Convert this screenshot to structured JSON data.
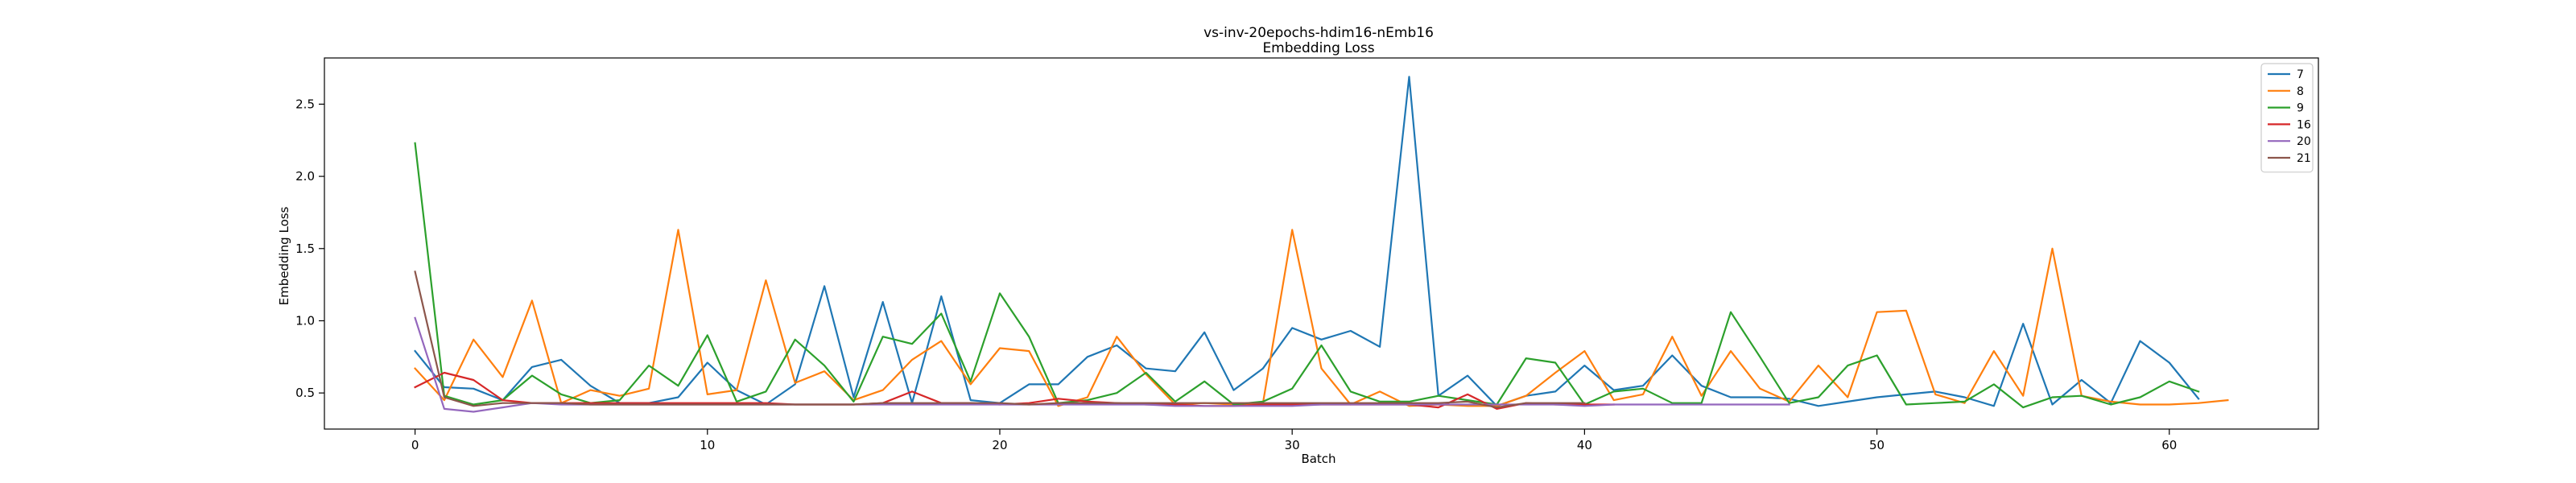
{
  "chart_data": {
    "type": "line",
    "title": "vs-inv-20epochs-hdim16-nEmb16",
    "subtitle": "Embedding Loss",
    "xlabel": "Batch",
    "ylabel": "Embedding Loss",
    "xlim": [
      -3.1,
      65.1
    ],
    "ylim": [
      0.25,
      2.82
    ],
    "xticks": [
      0,
      10,
      20,
      30,
      40,
      50,
      60
    ],
    "yticks": [
      0.5,
      1.0,
      1.5,
      2.0,
      2.5
    ],
    "ytick_labels": [
      "0.5",
      "1.0",
      "1.5",
      "2.0",
      "2.5"
    ],
    "grid": false,
    "legend": "top-right",
    "series": [
      {
        "name": "7",
        "color": "#1f77b4",
        "values": [
          0.79,
          0.54,
          0.53,
          0.45,
          0.68,
          0.73,
          0.55,
          0.43,
          0.43,
          0.47,
          0.71,
          0.52,
          0.42,
          0.56,
          1.24,
          0.47,
          1.13,
          0.43,
          1.17,
          0.45,
          0.43,
          0.56,
          0.56,
          0.75,
          0.83,
          0.67,
          0.65,
          0.92,
          0.52,
          0.67,
          0.95,
          0.87,
          0.93,
          0.82,
          2.69,
          0.48,
          0.62,
          0.41,
          0.48,
          0.51,
          0.69,
          0.52,
          0.55,
          0.76,
          0.55,
          0.47,
          0.47,
          0.46,
          0.41,
          0.44,
          0.47,
          0.49,
          0.51,
          0.47,
          0.41,
          0.98,
          0.42,
          0.59,
          0.43,
          0.86,
          0.71,
          0.46
        ]
      },
      {
        "name": "8",
        "color": "#ff7f0e",
        "values": [
          0.67,
          0.45,
          0.87,
          0.61,
          1.14,
          0.43,
          0.52,
          0.48,
          0.53,
          1.63,
          0.49,
          0.52,
          1.28,
          0.57,
          0.65,
          0.45,
          0.52,
          0.73,
          0.86,
          0.56,
          0.81,
          0.79,
          0.41,
          0.47,
          0.89,
          0.63,
          0.42,
          0.43,
          0.42,
          0.43,
          1.63,
          0.67,
          0.42,
          0.51,
          0.41,
          0.42,
          0.41,
          0.41,
          0.48,
          0.64,
          0.79,
          0.45,
          0.49,
          0.89,
          0.48,
          0.79,
          0.53,
          0.44,
          0.69,
          0.47,
          1.06,
          1.07,
          0.49,
          0.43,
          0.79,
          0.48,
          1.5,
          0.48,
          0.44,
          0.42,
          0.42,
          0.43,
          0.45
        ]
      },
      {
        "name": "9",
        "color": "#2ca02c",
        "values": [
          2.23,
          0.48,
          0.42,
          0.45,
          0.62,
          0.49,
          0.43,
          0.45,
          0.69,
          0.55,
          0.9,
          0.44,
          0.51,
          0.87,
          0.69,
          0.44,
          0.89,
          0.84,
          1.05,
          0.58,
          1.19,
          0.89,
          0.43,
          0.45,
          0.5,
          0.64,
          0.44,
          0.58,
          0.42,
          0.44,
          0.53,
          0.83,
          0.51,
          0.44,
          0.44,
          0.48,
          0.45,
          0.42,
          0.74,
          0.71,
          0.42,
          0.51,
          0.53,
          0.43,
          0.43,
          1.06,
          0.75,
          0.43,
          0.47,
          0.69,
          0.76,
          0.42,
          0.43,
          0.44,
          0.56,
          0.4,
          0.47,
          0.48,
          0.42,
          0.47,
          0.58,
          0.51
        ]
      },
      {
        "name": "16",
        "color": "#d62728",
        "values": [
          0.54,
          0.64,
          0.59,
          0.45,
          0.43,
          0.43,
          0.43,
          0.43,
          0.43,
          0.43,
          0.43,
          0.43,
          0.43,
          0.42,
          0.42,
          0.42,
          0.43,
          0.51,
          0.43,
          0.43,
          0.42,
          0.43,
          0.46,
          0.44,
          0.43,
          0.42,
          0.42,
          0.41,
          0.41,
          0.42,
          0.42,
          0.42,
          0.42,
          0.42,
          0.42,
          0.4,
          0.49,
          0.39,
          0.43,
          0.42,
          0.42,
          0.42
        ]
      },
      {
        "name": "20",
        "color": "#9467bd",
        "values": [
          1.02,
          0.39,
          0.37,
          0.4,
          0.43,
          0.42,
          0.42,
          0.42,
          0.42,
          0.42,
          0.42,
          0.42,
          0.42,
          0.42,
          0.42,
          0.42,
          0.42,
          0.42,
          0.42,
          0.42,
          0.42,
          0.42,
          0.42,
          0.42,
          0.42,
          0.42,
          0.41,
          0.41,
          0.41,
          0.41,
          0.41,
          0.42,
          0.42,
          0.42,
          0.42,
          0.42,
          0.42,
          0.42,
          0.42,
          0.42,
          0.41,
          0.42,
          0.42,
          0.42,
          0.42,
          0.42,
          0.42,
          0.42
        ]
      },
      {
        "name": "21",
        "color": "#8c564b",
        "values": [
          1.34,
          0.47,
          0.41,
          0.43,
          0.43,
          0.43,
          0.42,
          0.42,
          0.42,
          0.42,
          0.42,
          0.42,
          0.42,
          0.42,
          0.42,
          0.42,
          0.43,
          0.43,
          0.43,
          0.43,
          0.43,
          0.42,
          0.43,
          0.43,
          0.43,
          0.43,
          0.43,
          0.43,
          0.43,
          0.43,
          0.43,
          0.43,
          0.43,
          0.43,
          0.43,
          0.43,
          0.44,
          0.4,
          0.43,
          0.43,
          0.43
        ]
      }
    ]
  }
}
